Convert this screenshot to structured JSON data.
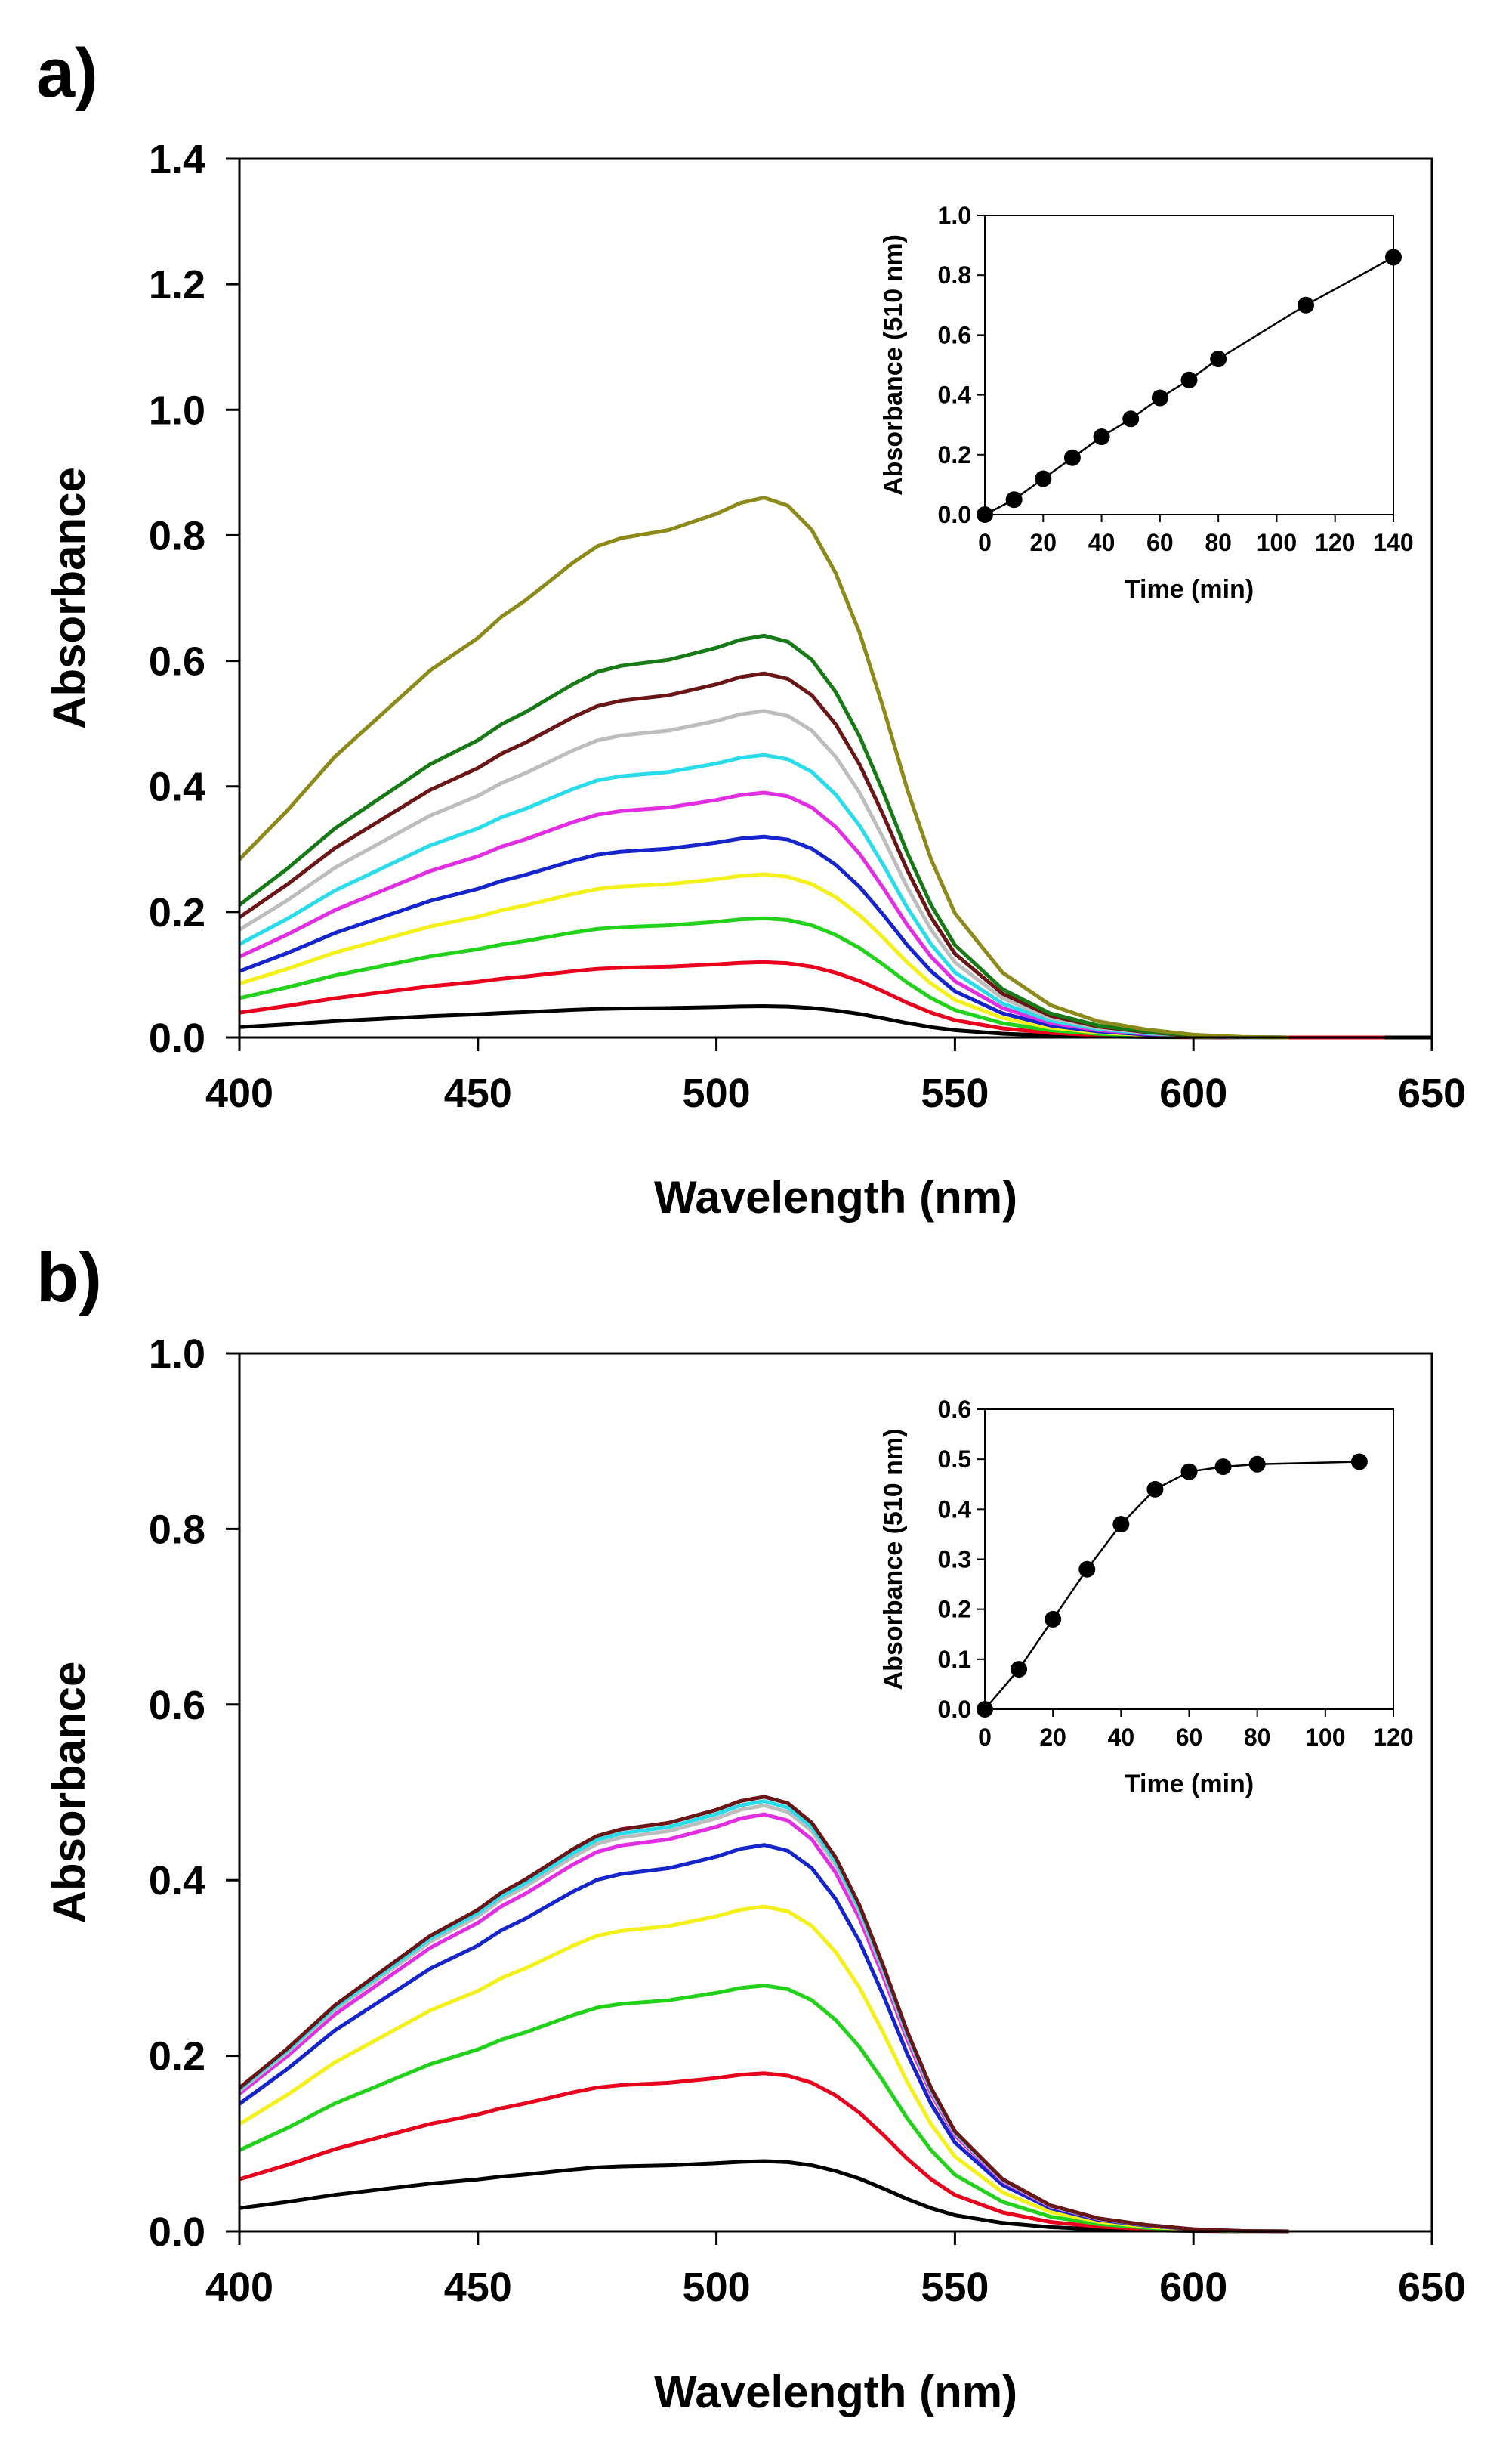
{
  "chart_data": [
    {
      "panel_label": "a)",
      "type": "line",
      "xlabel": "Wavelength (nm)",
      "ylabel": "Absorbance",
      "xlim": [
        400,
        650
      ],
      "ylim": [
        0.0,
        1.4
      ],
      "x_ticks": [
        "400",
        "450",
        "500",
        "550",
        "600",
        "650"
      ],
      "y_ticks": [
        "0.0",
        "0.2",
        "0.4",
        "0.6",
        "0.8",
        "1.0",
        "1.2",
        "1.4"
      ],
      "grid": false,
      "spectrum_x": [
        400,
        410,
        420,
        430,
        440,
        450,
        455,
        460,
        470,
        475,
        480,
        490,
        500,
        505,
        510,
        515,
        520,
        525,
        530,
        535,
        540,
        545,
        550,
        560,
        570,
        580,
        590,
        600,
        610,
        620
      ],
      "series": [
        {
          "name": "black",
          "color": "#000000",
          "peak": 0.05,
          "end_x": 650
        },
        {
          "name": "red",
          "color": "#e8001c",
          "peak": 0.12,
          "end_x": 640
        },
        {
          "name": "green",
          "color": "#22d21a",
          "peak": 0.19,
          "end_x": 620
        },
        {
          "name": "yellow",
          "color": "#f4f01a",
          "peak": 0.26,
          "end_x": 620
        },
        {
          "name": "blue",
          "color": "#1624cc",
          "peak": 0.32,
          "end_x": 615
        },
        {
          "name": "magenta",
          "color": "#e22ee2",
          "peak": 0.39,
          "end_x": 612
        },
        {
          "name": "cyan",
          "color": "#28dcea",
          "peak": 0.45,
          "end_x": 612
        },
        {
          "name": "gray",
          "color": "#bdbdbd",
          "peak": 0.52,
          "end_x": 610
        },
        {
          "name": "brown",
          "color": "#6b1616",
          "peak": 0.58,
          "end_x": 608
        },
        {
          "name": "dark green",
          "color": "#177a17",
          "peak": 0.64,
          "end_x": 606
        },
        {
          "name": "olive",
          "color": "#8c8a1a",
          "peak": 0.86,
          "end_x": 605
        }
      ],
      "inset": {
        "type": "scatter-line",
        "xlabel": "Time (min)",
        "ylabel": "Absorbance (510 nm)",
        "xlim": [
          0,
          140
        ],
        "ylim": [
          0.0,
          1.0
        ],
        "x_ticks": [
          "0",
          "20",
          "40",
          "60",
          "80",
          "100",
          "120",
          "140"
        ],
        "y_ticks": [
          "0.0",
          "0.2",
          "0.4",
          "0.6",
          "0.8",
          "1.0"
        ],
        "x": [
          0,
          10,
          20,
          30,
          40,
          50,
          60,
          70,
          80,
          110,
          140
        ],
        "y": [
          0.0,
          0.05,
          0.12,
          0.19,
          0.26,
          0.32,
          0.39,
          0.45,
          0.52,
          0.7,
          0.86
        ]
      }
    },
    {
      "panel_label": "b)",
      "type": "line",
      "xlabel": "Wavelength (nm)",
      "ylabel": "Absorbance",
      "xlim": [
        400,
        650
      ],
      "ylim": [
        0.0,
        1.0
      ],
      "x_ticks": [
        "400",
        "450",
        "500",
        "550",
        "600",
        "650"
      ],
      "y_ticks": [
        "0.0",
        "0.2",
        "0.4",
        "0.6",
        "0.8",
        "1.0"
      ],
      "grid": false,
      "spectrum_x": [
        400,
        410,
        420,
        430,
        440,
        450,
        455,
        460,
        470,
        475,
        480,
        490,
        500,
        505,
        510,
        515,
        520,
        525,
        530,
        535,
        540,
        545,
        550,
        560,
        570,
        580,
        590,
        600,
        610,
        620
      ],
      "series": [
        {
          "name": "black",
          "color": "#000000",
          "peak": 0.08,
          "end_x": 618
        },
        {
          "name": "red",
          "color": "#e8001c",
          "peak": 0.18,
          "end_x": 618
        },
        {
          "name": "green",
          "color": "#22d21a",
          "peak": 0.28,
          "end_x": 618
        },
        {
          "name": "yellow",
          "color": "#f4f01a",
          "peak": 0.37,
          "end_x": 618
        },
        {
          "name": "blue",
          "color": "#1624cc",
          "peak": 0.44,
          "end_x": 618
        },
        {
          "name": "magenta",
          "color": "#e22ee2",
          "peak": 0.475,
          "end_x": 618
        },
        {
          "name": "gray",
          "color": "#bdbdbd",
          "peak": 0.485,
          "end_x": 618
        },
        {
          "name": "cyan",
          "color": "#28dcea",
          "peak": 0.49,
          "end_x": 618
        },
        {
          "name": "brown",
          "color": "#6b1616",
          "peak": 0.495,
          "end_x": 618
        }
      ],
      "inset": {
        "type": "scatter-line",
        "xlabel": "Time (min)",
        "ylabel": "Absorbance (510 nm)",
        "xlim": [
          0,
          120
        ],
        "ylim": [
          0.0,
          0.6
        ],
        "x_ticks": [
          "0",
          "20",
          "40",
          "60",
          "80",
          "100",
          "120"
        ],
        "y_ticks": [
          "0.0",
          "0.1",
          "0.2",
          "0.3",
          "0.4",
          "0.5",
          "0.6"
        ],
        "x": [
          0,
          10,
          20,
          30,
          40,
          50,
          60,
          70,
          80,
          110
        ],
        "y": [
          0.0,
          0.08,
          0.18,
          0.28,
          0.37,
          0.44,
          0.475,
          0.485,
          0.49,
          0.495
        ]
      }
    }
  ]
}
